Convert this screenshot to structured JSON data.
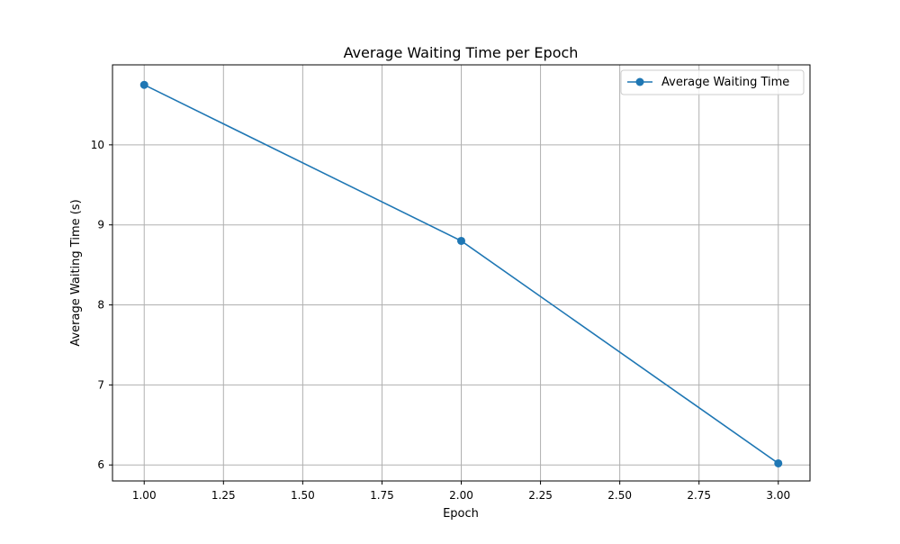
{
  "chart_data": {
    "type": "line",
    "title": "Average Waiting Time per Epoch",
    "xlabel": "Epoch",
    "ylabel": "Average Waiting Time (s)",
    "xlim": [
      0.9,
      3.1
    ],
    "ylim": [
      5.8,
      11.0
    ],
    "x_ticks": [
      1.0,
      1.25,
      1.5,
      1.75,
      2.0,
      2.25,
      2.5,
      2.75,
      3.0
    ],
    "x_tick_labels": [
      "1.00",
      "1.25",
      "1.50",
      "1.75",
      "2.00",
      "2.25",
      "2.50",
      "2.75",
      "3.00"
    ],
    "y_ticks": [
      6,
      7,
      8,
      9,
      10
    ],
    "y_tick_labels": [
      "6",
      "7",
      "8",
      "9",
      "10"
    ],
    "grid": true,
    "legend_position": "top-right",
    "series": [
      {
        "name": "Average Waiting Time",
        "color": "#1f77b4",
        "marker": "circle",
        "x": [
          1,
          2,
          3
        ],
        "y": [
          10.75,
          8.8,
          6.02
        ]
      }
    ]
  }
}
